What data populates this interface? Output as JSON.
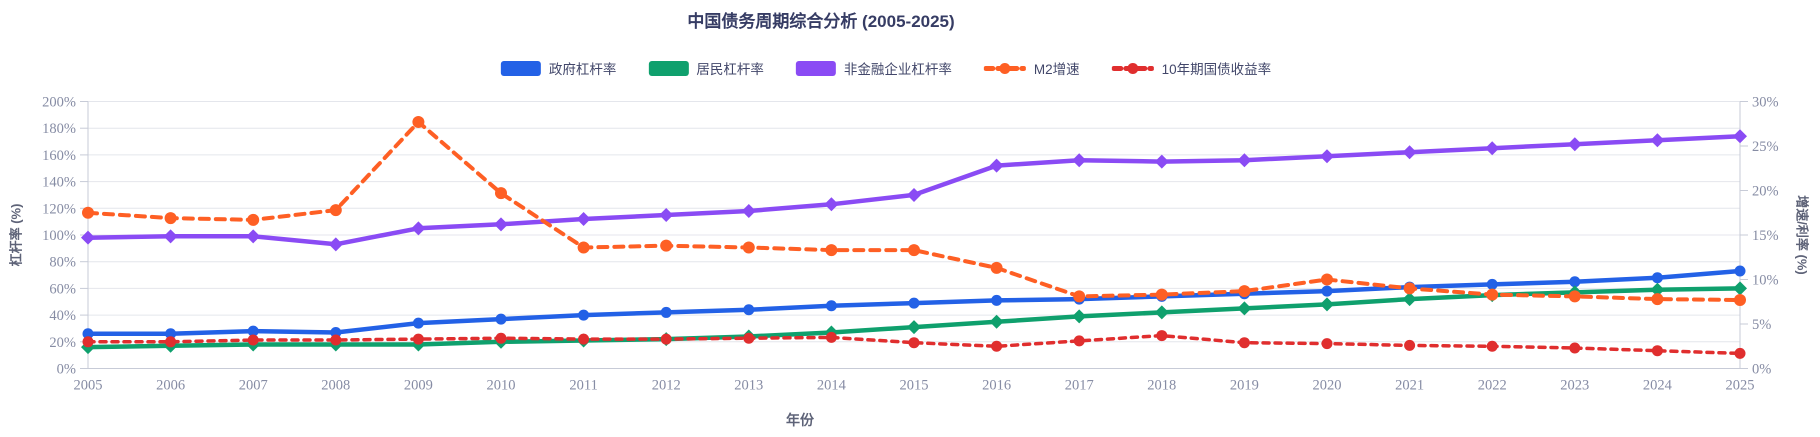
{
  "ui_colors": {
    "background": "#ffffff",
    "title_text": "#363c64",
    "legend_text": "#42476a",
    "axis_title_text": "#5e6378",
    "tick_label_text": "#868ca4",
    "gridline": "#e4e6ec",
    "axis_line": "#c7cbd7"
  },
  "chart_data": {
    "type": "line",
    "title": "中国债务周期综合分析 (2005-2025)",
    "xlabel": "年份",
    "ylabel_left": "杠杆率 (%)",
    "ylabel_right": "增速/利率 (%)",
    "grid": true,
    "legend_position": "top",
    "x": [
      2005,
      2006,
      2007,
      2008,
      2009,
      2010,
      2011,
      2012,
      2013,
      2014,
      2015,
      2016,
      2017,
      2018,
      2019,
      2020,
      2021,
      2022,
      2023,
      2024,
      2025
    ],
    "x_tick_labels": [
      "2005",
      "2006",
      "2007",
      "2008",
      "2009",
      "2010",
      "2011",
      "2012",
      "2013",
      "2014",
      "2015",
      "2016",
      "2017",
      "2018",
      "2019",
      "2020",
      "2021",
      "2022",
      "2023",
      "2024",
      "2025"
    ],
    "y_left": {
      "min": 0,
      "max": 200,
      "step": 20,
      "tick_labels": [
        "0%",
        "20%",
        "40%",
        "60%",
        "80%",
        "100%",
        "120%",
        "140%",
        "160%",
        "180%",
        "200%"
      ]
    },
    "y_right": {
      "min": 0,
      "max": 30,
      "step": 5,
      "tick_labels": [
        "0%",
        "5%",
        "10%",
        "15%",
        "20%",
        "25%",
        "30%"
      ]
    },
    "series": [
      {
        "id": "government-leverage",
        "name": "政府杠杆率",
        "axis": "left",
        "color": "#2361e6",
        "style": "solid",
        "marker": "circle",
        "values": [
          26,
          26,
          28,
          27,
          34,
          37,
          40,
          42,
          44,
          47,
          49,
          51,
          52,
          54,
          56,
          58,
          61,
          63,
          65,
          68,
          73
        ]
      },
      {
        "id": "household-leverage",
        "name": "居民杠杆率",
        "axis": "left",
        "color": "#0fa06d",
        "style": "solid",
        "marker": "diamond",
        "values": [
          16,
          17,
          18,
          18,
          18,
          20,
          21,
          22,
          24,
          27,
          31,
          35,
          39,
          42,
          45,
          48,
          52,
          55,
          57,
          59,
          60
        ]
      },
      {
        "id": "corporate-leverage",
        "name": "非金融企业杠杆率",
        "axis": "left",
        "color": "#8a4bf4",
        "style": "solid",
        "marker": "diamond",
        "values": [
          98,
          99,
          99,
          93,
          105,
          108,
          112,
          115,
          118,
          123,
          130,
          152,
          156,
          155,
          156,
          159,
          162,
          165,
          168,
          171,
          174
        ]
      },
      {
        "id": "m2-growth",
        "name": "M2增速",
        "axis": "right",
        "color": "#fe5f24",
        "style": "dashed",
        "marker": "circle",
        "values": [
          17.5,
          16.9,
          16.7,
          17.8,
          27.7,
          19.7,
          13.6,
          13.8,
          13.6,
          13.3,
          13.3,
          11.3,
          8.1,
          8.3,
          8.7,
          10.0,
          9.0,
          8.3,
          8.1,
          7.8,
          7.7
        ]
      },
      {
        "id": "10y-treasury-yield",
        "name": "10年期国债收益率",
        "axis": "right",
        "color": "#e02e2e",
        "style": "dashed",
        "marker": "circle",
        "values": [
          3.0,
          3.0,
          3.2,
          3.2,
          3.3,
          3.4,
          3.3,
          3.3,
          3.4,
          3.5,
          2.9,
          2.5,
          3.1,
          3.7,
          2.9,
          2.8,
          2.6,
          2.5,
          2.3,
          2.0,
          1.7
        ]
      }
    ]
  }
}
